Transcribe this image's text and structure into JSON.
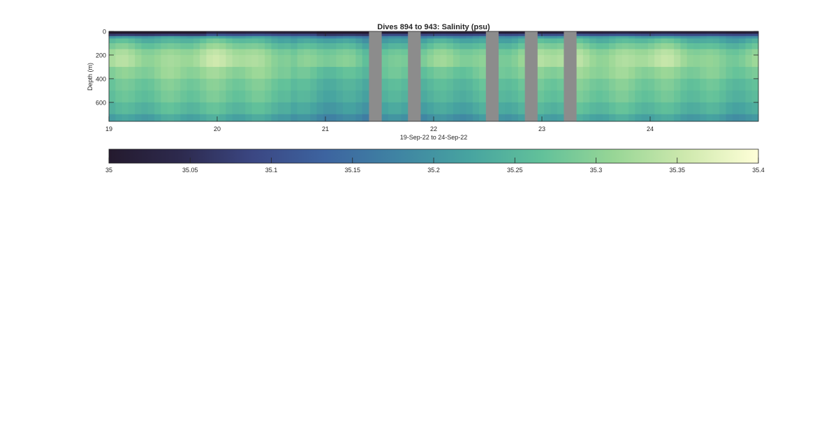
{
  "chart_data": {
    "type": "heatmap",
    "title": "Dives 894 to 943: Salinity (psu)",
    "xlabel": "19-Sep-22 to 24-Sep-22",
    "ylabel": "Depth (m)",
    "x_range": [
      19,
      25
    ],
    "x_ticks": [
      "19",
      "20",
      "21",
      "22",
      "23",
      "24"
    ],
    "y_range": [
      0,
      760
    ],
    "y_reversed": true,
    "y_ticks": [
      "0",
      "200",
      "400",
      "600"
    ],
    "gaps": [
      [
        21.4,
        21.52
      ],
      [
        21.76,
        21.88
      ],
      [
        22.48,
        22.6
      ],
      [
        22.84,
        22.96
      ],
      [
        23.2,
        23.32
      ]
    ],
    "depth_bins": [
      0,
      20,
      40,
      60,
      100,
      150,
      200,
      300,
      400,
      500,
      600,
      700,
      760
    ],
    "salinity_profile": [
      35.02,
      35.1,
      35.2,
      35.24,
      35.27,
      35.3,
      35.31,
      35.29,
      35.27,
      35.26,
      35.24,
      35.21
    ],
    "colormap": [
      "#241a2e",
      "#2d2a4e",
      "#3b4783",
      "#3d64a0",
      "#3f84a3",
      "#47a4a0",
      "#62c19a",
      "#98d696",
      "#cfe9ae",
      "#ffffd8"
    ],
    "nodata_color": "#8c8c8c",
    "colorbar": {
      "range": [
        35,
        35.4
      ],
      "ticks": [
        "35",
        "35.05",
        "35.1",
        "35.15",
        "35.2",
        "35.25",
        "35.3",
        "35.35",
        "35.4"
      ]
    }
  }
}
